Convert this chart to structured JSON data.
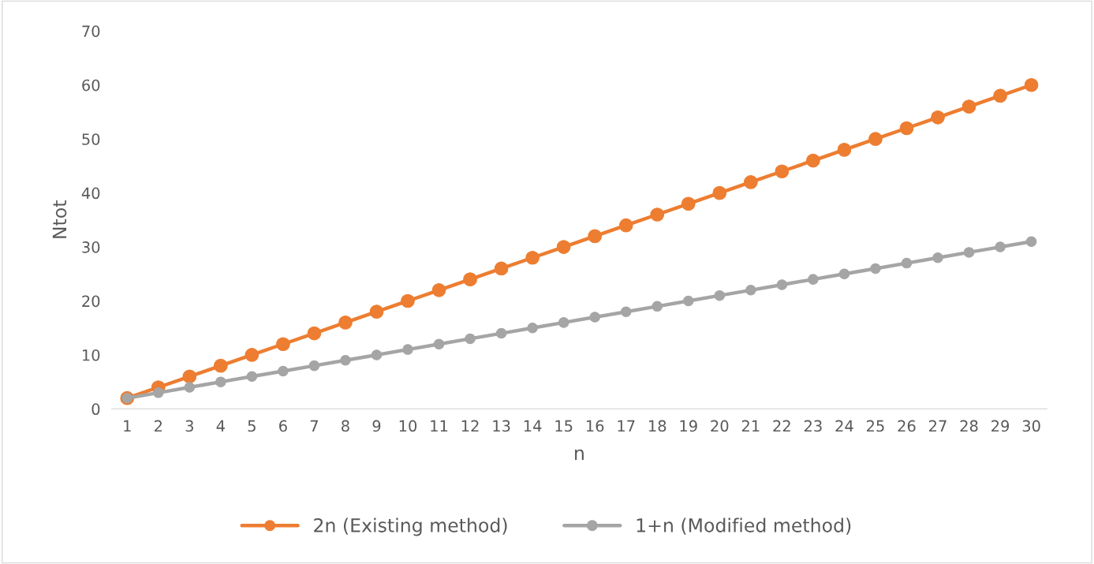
{
  "chart_data": {
    "type": "line",
    "xlabel": "n",
    "ylabel": "Ntot",
    "categories": [
      "1",
      "2",
      "3",
      "4",
      "5",
      "6",
      "7",
      "8",
      "9",
      "10",
      "11",
      "12",
      "13",
      "14",
      "15",
      "16",
      "17",
      "18",
      "19",
      "20",
      "21",
      "22",
      "23",
      "24",
      "25",
      "26",
      "27",
      "28",
      "29",
      "30"
    ],
    "series": [
      {
        "name": "2n (Existing method)",
        "color": "#ed7d31",
        "values": [
          2,
          4,
          6,
          8,
          10,
          12,
          14,
          16,
          18,
          20,
          22,
          24,
          26,
          28,
          30,
          32,
          34,
          36,
          38,
          40,
          42,
          44,
          46,
          48,
          50,
          52,
          54,
          56,
          58,
          60
        ]
      },
      {
        "name": "1+n (Modified method)",
        "color": "#a5a5a5",
        "values": [
          2,
          3,
          4,
          5,
          6,
          7,
          8,
          9,
          10,
          11,
          12,
          13,
          14,
          15,
          16,
          17,
          18,
          19,
          20,
          21,
          22,
          23,
          24,
          25,
          26,
          27,
          28,
          29,
          30,
          31
        ]
      }
    ],
    "ylim": [
      0,
      70
    ],
    "yticks": [
      0,
      10,
      20,
      30,
      40,
      50,
      60,
      70
    ],
    "marker": "circle",
    "line_style": "solid",
    "grid": false,
    "legend": "bottom"
  }
}
